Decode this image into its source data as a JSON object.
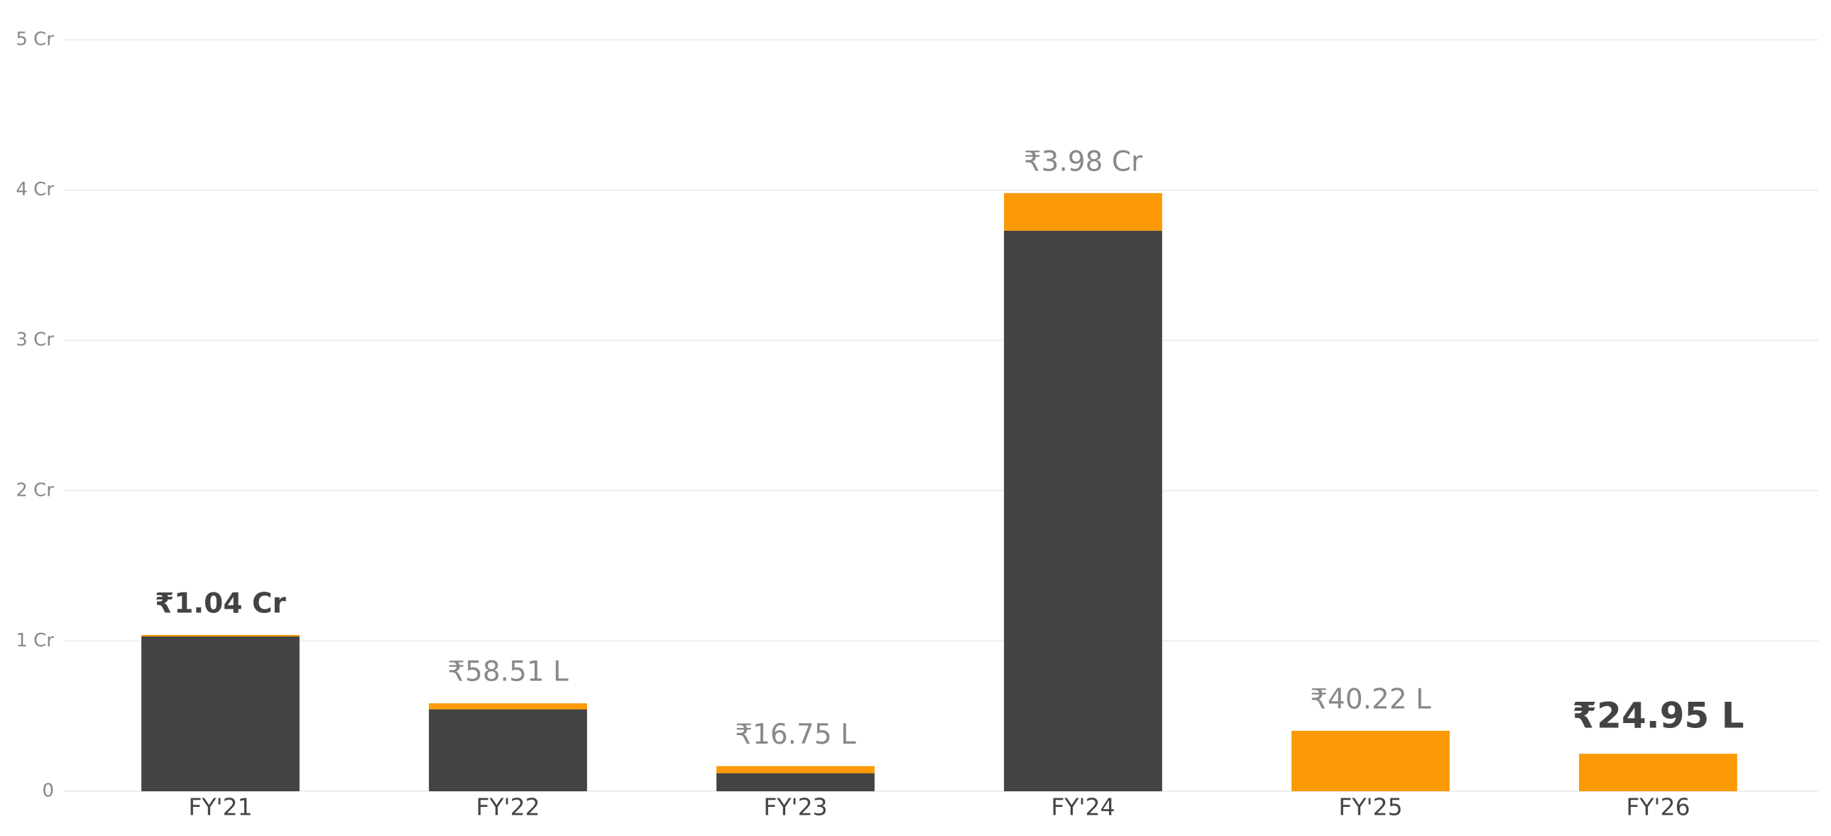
{
  "chart_data": {
    "type": "stacked_bar",
    "categories": [
      "FY'21",
      "FY'22",
      "FY'23",
      "FY'24",
      "FY'25",
      "FY'26"
    ],
    "series": [
      {
        "color": "#434343",
        "values": [
          1.03,
          0.545,
          0.12,
          3.73,
          0,
          0
        ]
      },
      {
        "color": "#fb9a05",
        "values": [
          0.01,
          0.0401,
          0.0475,
          0.25,
          0.4022,
          0.2495
        ]
      }
    ],
    "totals": [
      1.04,
      0.5851,
      0.1675,
      3.98,
      0.4022,
      0.2495
    ],
    "value_labels": [
      "₹1.04 Cr",
      "₹58.51 L",
      "₹16.75 L",
      "₹3.98 Cr",
      "₹40.22 L",
      "₹24.95 L"
    ],
    "ylim": [
      0,
      5
    ],
    "yticks": [
      0,
      {
        "value": 1,
        "label": "1 Cr"
      },
      {
        "value": 2,
        "label": "2 Cr"
      },
      {
        "value": 3,
        "label": "3 Cr"
      },
      {
        "value": 4,
        "label": "4 Cr"
      },
      {
        "value": 5,
        "label": "5 Cr"
      }
    ],
    "grid": true
  }
}
